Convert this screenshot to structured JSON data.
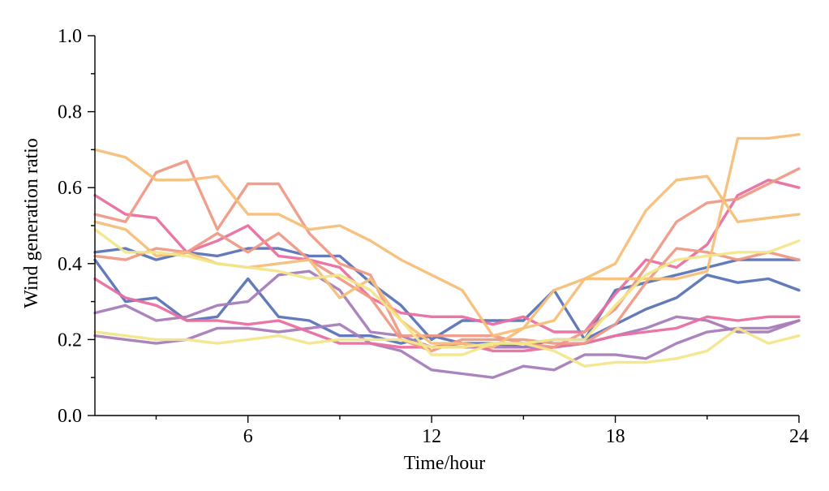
{
  "chart_data": {
    "type": "line",
    "title": "",
    "xlabel": "Time/hour",
    "ylabel": "Wind generation ratio",
    "xlim": [
      1,
      24
    ],
    "ylim": [
      0.0,
      1.0
    ],
    "xticks": [
      6,
      12,
      18,
      24
    ],
    "xtick_labels": [
      "6",
      "12",
      "18",
      "24"
    ],
    "yticks": [
      0.0,
      0.2,
      0.4,
      0.6,
      0.8,
      1.0
    ],
    "ytick_labels": [
      "0.0",
      "0.2",
      "0.4",
      "0.6",
      "0.8",
      "1.0"
    ],
    "grid": false,
    "legend": "none",
    "x": [
      1,
      2,
      3,
      4,
      5,
      6,
      7,
      8,
      9,
      10,
      11,
      12,
      13,
      14,
      15,
      16,
      17,
      18,
      19,
      20,
      21,
      22,
      23,
      24
    ],
    "series": [
      {
        "color": "#5b74b6",
        "values": [
          0.43,
          0.44,
          0.41,
          0.43,
          0.42,
          0.44,
          0.44,
          0.42,
          0.42,
          0.35,
          0.29,
          0.2,
          0.25,
          0.25,
          0.25,
          0.33,
          0.2,
          0.33,
          0.35,
          0.37,
          0.39,
          0.41,
          0.41,
          0.41
        ]
      },
      {
        "color": "#5b74b6",
        "values": [
          0.41,
          0.3,
          0.31,
          0.25,
          0.26,
          0.36,
          0.26,
          0.25,
          0.21,
          0.21,
          0.19,
          0.21,
          0.19,
          0.19,
          0.18,
          0.2,
          0.2,
          0.24,
          0.28,
          0.31,
          0.37,
          0.35,
          0.36,
          0.33
        ]
      },
      {
        "color": "#a77dba",
        "values": [
          0.27,
          0.29,
          0.25,
          0.26,
          0.29,
          0.3,
          0.37,
          0.38,
          0.33,
          0.22,
          0.21,
          0.18,
          0.18,
          0.18,
          0.18,
          0.18,
          0.19,
          0.21,
          0.23,
          0.26,
          0.25,
          0.22,
          0.22,
          0.25
        ]
      },
      {
        "color": "#a77dba",
        "values": [
          0.21,
          0.2,
          0.19,
          0.2,
          0.23,
          0.23,
          0.22,
          0.23,
          0.24,
          0.19,
          0.17,
          0.12,
          0.11,
          0.1,
          0.13,
          0.12,
          0.16,
          0.16,
          0.15,
          0.19,
          0.22,
          0.23,
          0.23,
          0.25
        ]
      },
      {
        "color": "#e86fa0",
        "values": [
          0.58,
          0.53,
          0.52,
          0.43,
          0.46,
          0.5,
          0.42,
          0.41,
          0.39,
          0.31,
          0.27,
          0.26,
          0.26,
          0.24,
          0.26,
          0.22,
          0.22,
          0.32,
          0.41,
          0.39,
          0.45,
          0.58,
          0.62,
          0.6
        ]
      },
      {
        "color": "#e86fa0",
        "values": [
          0.36,
          0.31,
          0.29,
          0.25,
          0.25,
          0.24,
          0.25,
          0.22,
          0.19,
          0.19,
          0.18,
          0.18,
          0.19,
          0.17,
          0.17,
          0.18,
          0.19,
          0.21,
          0.22,
          0.23,
          0.26,
          0.25,
          0.26,
          0.26
        ]
      },
      {
        "color": "#ef9a86",
        "values": [
          0.53,
          0.51,
          0.64,
          0.67,
          0.49,
          0.61,
          0.61,
          0.48,
          0.4,
          0.37,
          0.21,
          0.21,
          0.21,
          0.21,
          0.19,
          0.18,
          0.22,
          0.28,
          0.39,
          0.51,
          0.56,
          0.57,
          0.61,
          0.65
        ]
      },
      {
        "color": "#ef9a86",
        "values": [
          0.42,
          0.41,
          0.44,
          0.43,
          0.48,
          0.43,
          0.48,
          0.41,
          0.36,
          0.31,
          0.2,
          0.17,
          0.2,
          0.2,
          0.2,
          0.19,
          0.19,
          0.24,
          0.35,
          0.44,
          0.43,
          0.41,
          0.43,
          0.41
        ]
      },
      {
        "color": "#f7bf78",
        "values": [
          0.7,
          0.68,
          0.62,
          0.62,
          0.63,
          0.53,
          0.53,
          0.49,
          0.5,
          0.46,
          0.41,
          0.37,
          0.33,
          0.21,
          0.23,
          0.25,
          0.36,
          0.36,
          0.36,
          0.36,
          0.38,
          0.73,
          0.73,
          0.74
        ]
      },
      {
        "color": "#f7bf78",
        "values": [
          0.51,
          0.49,
          0.42,
          0.43,
          0.4,
          0.39,
          0.4,
          0.41,
          0.31,
          0.36,
          0.25,
          0.19,
          0.19,
          0.18,
          0.23,
          0.33,
          0.36,
          0.4,
          0.54,
          0.62,
          0.63,
          0.51,
          0.52,
          0.53
        ]
      },
      {
        "color": "#f2e68a",
        "values": [
          0.49,
          0.43,
          0.43,
          0.42,
          0.4,
          0.39,
          0.38,
          0.36,
          0.37,
          0.33,
          0.25,
          0.16,
          0.16,
          0.19,
          0.19,
          0.2,
          0.2,
          0.29,
          0.37,
          0.41,
          0.42,
          0.43,
          0.43,
          0.46
        ]
      },
      {
        "color": "#f2e68a",
        "values": [
          0.22,
          0.21,
          0.2,
          0.2,
          0.19,
          0.2,
          0.21,
          0.19,
          0.2,
          0.2,
          0.2,
          0.18,
          0.18,
          0.19,
          0.19,
          0.17,
          0.13,
          0.14,
          0.14,
          0.15,
          0.17,
          0.23,
          0.19,
          0.21
        ]
      }
    ]
  }
}
